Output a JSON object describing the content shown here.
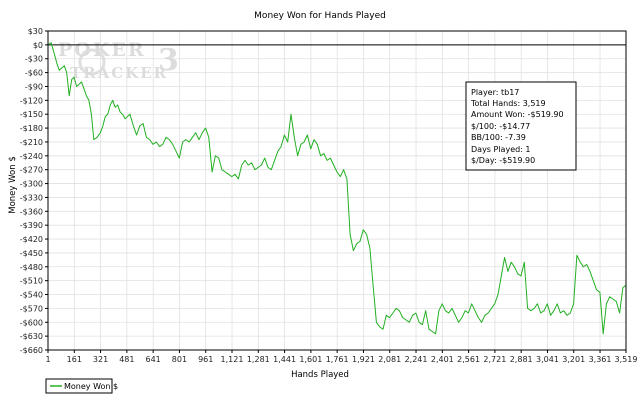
{
  "chart_data": {
    "type": "line",
    "title": "Money Won for Hands Played",
    "xlabel": "Hands Played",
    "ylabel": "Money Won $",
    "xlim": [
      1,
      3519
    ],
    "ylim": [
      -660,
      30
    ],
    "grid": true,
    "legend_position": "bottom-left",
    "x_ticks": [
      1,
      161,
      321,
      481,
      641,
      801,
      961,
      1121,
      1281,
      1441,
      1601,
      1761,
      1921,
      2081,
      2241,
      2401,
      2561,
      2721,
      2881,
      3041,
      3201,
      3361,
      3519
    ],
    "x_tick_labels": [
      "1",
      "161",
      "321",
      "481",
      "641",
      "801",
      "961",
      "1,121",
      "1,281",
      "1,441",
      "1,601",
      "1,761",
      "1,921",
      "2,081",
      "2,241",
      "2,401",
      "2,561",
      "2,721",
      "2,881",
      "3,041",
      "3,201",
      "3,361",
      "3,519"
    ],
    "y_ticks": [
      30,
      0,
      -30,
      -60,
      -90,
      -120,
      -150,
      -180,
      -210,
      -240,
      -270,
      -300,
      -330,
      -360,
      -390,
      -420,
      -450,
      -480,
      -510,
      -540,
      -570,
      -600,
      -630,
      -660
    ],
    "y_tick_labels": [
      "$30",
      "$0",
      "-$30",
      "-$60",
      "-$90",
      "-$120",
      "-$150",
      "-$180",
      "-$210",
      "-$240",
      "-$270",
      "-$300",
      "-$330",
      "-$360",
      "-$390",
      "-$420",
      "-$450",
      "-$480",
      "-$510",
      "-$540",
      "-$570",
      "-$600",
      "-$630",
      "-$660"
    ],
    "series": [
      {
        "name": "Money Won $",
        "color": "#22b022",
        "x": [
          1,
          20,
          40,
          55,
          70,
          85,
          100,
          115,
          130,
          145,
          160,
          175,
          190,
          205,
          220,
          235,
          250,
          265,
          280,
          300,
          320,
          335,
          350,
          365,
          380,
          395,
          410,
          425,
          440,
          455,
          470,
          485,
          500,
          520,
          540,
          560,
          580,
          600,
          620,
          640,
          660,
          680,
          700,
          720,
          740,
          760,
          780,
          800,
          820,
          840,
          860,
          880,
          900,
          920,
          940,
          960,
          980,
          1000,
          1020,
          1040,
          1060,
          1080,
          1100,
          1120,
          1140,
          1160,
          1180,
          1200,
          1220,
          1240,
          1260,
          1280,
          1300,
          1320,
          1340,
          1360,
          1380,
          1400,
          1420,
          1440,
          1460,
          1480,
          1500,
          1520,
          1540,
          1560,
          1580,
          1600,
          1620,
          1640,
          1660,
          1680,
          1700,
          1720,
          1740,
          1760,
          1780,
          1800,
          1820,
          1840,
          1860,
          1880,
          1900,
          1920,
          1940,
          1960,
          1980,
          2000,
          2020,
          2040,
          2060,
          2080,
          2100,
          2120,
          2140,
          2160,
          2180,
          2200,
          2220,
          2240,
          2260,
          2280,
          2300,
          2320,
          2340,
          2360,
          2380,
          2400,
          2420,
          2440,
          2460,
          2480,
          2500,
          2520,
          2540,
          2560,
          2580,
          2600,
          2620,
          2640,
          2660,
          2680,
          2700,
          2720,
          2740,
          2760,
          2780,
          2800,
          2820,
          2840,
          2860,
          2880,
          2900,
          2920,
          2940,
          2960,
          2980,
          3000,
          3020,
          3040,
          3060,
          3080,
          3100,
          3120,
          3140,
          3160,
          3180,
          3200,
          3220,
          3240,
          3260,
          3280,
          3300,
          3320,
          3340,
          3360,
          3380,
          3400,
          3420,
          3440,
          3460,
          3480,
          3500,
          3519
        ],
        "y": [
          0,
          5,
          -20,
          -40,
          -55,
          -50,
          -45,
          -60,
          -110,
          -75,
          -70,
          -90,
          -85,
          -80,
          -95,
          -110,
          -120,
          -150,
          -205,
          -200,
          -190,
          -175,
          -155,
          -150,
          -130,
          -120,
          -135,
          -130,
          -145,
          -150,
          -160,
          -155,
          -150,
          -175,
          -195,
          -175,
          -170,
          -200,
          -205,
          -215,
          -210,
          -220,
          -215,
          -200,
          -205,
          -215,
          -230,
          -245,
          -210,
          -205,
          -210,
          -200,
          -190,
          -205,
          -190,
          -180,
          -200,
          -275,
          -240,
          -245,
          -270,
          -275,
          -280,
          -285,
          -280,
          -290,
          -260,
          -250,
          -260,
          -255,
          -270,
          -265,
          -260,
          -245,
          -265,
          -270,
          -250,
          -230,
          -220,
          -195,
          -210,
          -150,
          -200,
          -240,
          -215,
          -210,
          -195,
          -225,
          -205,
          -215,
          -240,
          -235,
          -250,
          -245,
          -260,
          -275,
          -285,
          -270,
          -290,
          -410,
          -445,
          -430,
          -425,
          -400,
          -410,
          -440,
          -520,
          -600,
          -610,
          -615,
          -585,
          -590,
          -580,
          -570,
          -575,
          -590,
          -595,
          -600,
          -585,
          -580,
          -600,
          -605,
          -575,
          -615,
          -620,
          -625,
          -575,
          -560,
          -575,
          -580,
          -570,
          -585,
          -600,
          -590,
          -575,
          -580,
          -560,
          -575,
          -590,
          -600,
          -585,
          -580,
          -570,
          -560,
          -540,
          -500,
          -460,
          -490,
          -470,
          -480,
          -495,
          -500,
          -470,
          -570,
          -575,
          -570,
          -560,
          -580,
          -575,
          -560,
          -585,
          -575,
          -560,
          -580,
          -575,
          -585,
          -580,
          -560,
          -455,
          -470,
          -480,
          -475,
          -490,
          -510,
          -530,
          -535,
          -625,
          -560,
          -545,
          -550,
          -555,
          -580,
          -525,
          -520
        ]
      }
    ]
  },
  "stats_box": {
    "lines": [
      "Player: tb17",
      "Total Hands: 3,519",
      "Amount Won: -$519.90",
      "$/100: -$14.77",
      "BB/100: -7.39",
      "Days Played: 1",
      "$/Day: -$519.90"
    ]
  },
  "watermark": {
    "line1": "POKER",
    "line2": "TRACKER",
    "mark": "3"
  },
  "colors": {
    "line": "#22b022",
    "grid": "#e1e1e1",
    "zero_line": "#000000",
    "frame": "#000000"
  }
}
